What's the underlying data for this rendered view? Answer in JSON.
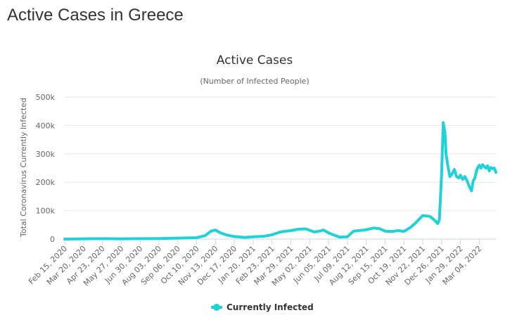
{
  "page": {
    "title": "Active Cases in Greece"
  },
  "chart_data": {
    "type": "line",
    "title": "Active Cases",
    "subtitle": "(Number of Infected People)",
    "ylabel": "Total Coronavirus Currently Infected",
    "xlabel": "",
    "ylim": [
      0,
      500000
    ],
    "yticks": [
      0,
      100000,
      200000,
      300000,
      400000,
      500000
    ],
    "ytick_labels": [
      "0",
      "100k",
      "200k",
      "300k",
      "400k",
      "500k"
    ],
    "x_start": "2020-02-15",
    "x_end": "2022-04-03",
    "xtick_dates": [
      "2020-02-15",
      "2020-03-20",
      "2020-04-23",
      "2020-05-27",
      "2020-06-30",
      "2020-08-03",
      "2020-09-06",
      "2020-10-10",
      "2020-11-13",
      "2020-12-17",
      "2021-01-20",
      "2021-02-23",
      "2021-03-29",
      "2021-05-02",
      "2021-06-05",
      "2021-07-09",
      "2021-08-12",
      "2021-09-15",
      "2021-10-19",
      "2021-11-22",
      "2021-12-26",
      "2022-01-29",
      "2022-03-04"
    ],
    "xtick_labels": [
      "Feb 15, 2020",
      "Mar 20, 2020",
      "Apr 23, 2020",
      "May 27, 2020",
      "Jun 30, 2020",
      "Aug 03, 2020",
      "Sep 06, 2020",
      "Oct 10, 2020",
      "Nov 13, 2020",
      "Dec 17, 2020",
      "Jan 20, 2021",
      "Feb 23, 2021",
      "Mar 29, 2021",
      "May 02, 2021",
      "Jun 05, 2021",
      "Jul 09, 2021",
      "Aug 12, 2021",
      "Sep 15, 2021",
      "Oct 19, 2021",
      "Nov 22, 2021",
      "Dec 26, 2021",
      "Jan 29, 2022",
      "Mar 04, 2022"
    ],
    "grid": true,
    "legend_position": "bottom-center",
    "series": [
      {
        "name": "Currently Infected",
        "color": "#1ed3d8",
        "x": [
          "2020-02-15",
          "2020-03-20",
          "2020-04-23",
          "2020-05-27",
          "2020-06-30",
          "2020-08-03",
          "2020-09-06",
          "2020-10-10",
          "2020-10-25",
          "2020-11-05",
          "2020-11-13",
          "2020-11-22",
          "2020-12-02",
          "2020-12-17",
          "2021-01-05",
          "2021-01-20",
          "2021-02-08",
          "2021-02-23",
          "2021-03-10",
          "2021-03-29",
          "2021-04-12",
          "2021-04-25",
          "2021-05-02",
          "2021-05-10",
          "2021-05-20",
          "2021-05-27",
          "2021-06-05",
          "2021-06-15",
          "2021-06-25",
          "2021-07-09",
          "2021-07-20",
          "2021-08-12",
          "2021-08-25",
          "2021-09-05",
          "2021-09-15",
          "2021-09-28",
          "2021-10-08",
          "2021-10-19",
          "2021-10-30",
          "2021-11-08",
          "2021-11-22",
          "2021-12-05",
          "2021-12-14",
          "2021-12-19",
          "2021-12-22",
          "2021-12-26",
          "2021-12-29",
          "2022-01-01",
          "2022-01-03",
          "2022-01-06",
          "2022-01-10",
          "2022-01-14",
          "2022-01-18",
          "2022-01-22",
          "2022-01-26",
          "2022-01-29",
          "2022-02-02",
          "2022-02-06",
          "2022-02-10",
          "2022-02-14",
          "2022-02-18",
          "2022-02-21",
          "2022-02-24",
          "2022-02-27",
          "2022-03-02",
          "2022-03-04",
          "2022-03-07",
          "2022-03-10",
          "2022-03-13",
          "2022-03-16",
          "2022-03-19",
          "2022-03-22",
          "2022-03-25",
          "2022-03-28",
          "2022-03-31",
          "2022-04-03"
        ],
        "values": [
          0,
          1000,
          1500,
          1000,
          1500,
          2000,
          3500,
          5000,
          12000,
          28000,
          32000,
          22000,
          15000,
          9000,
          6000,
          8000,
          10000,
          15000,
          25000,
          30000,
          35000,
          36000,
          31000,
          25000,
          28000,
          32000,
          22000,
          14000,
          7000,
          8000,
          28000,
          33000,
          39000,
          37000,
          28000,
          27000,
          30000,
          27000,
          40000,
          55000,
          83000,
          80000,
          65000,
          55000,
          68000,
          230000,
          410000,
          375000,
          300000,
          260000,
          220000,
          230000,
          245000,
          220000,
          215000,
          225000,
          210000,
          220000,
          205000,
          185000,
          170000,
          205000,
          215000,
          240000,
          255000,
          260000,
          250000,
          262000,
          255000,
          250000,
          258000,
          240000,
          252000,
          248000,
          250000,
          235000
        ]
      }
    ]
  }
}
